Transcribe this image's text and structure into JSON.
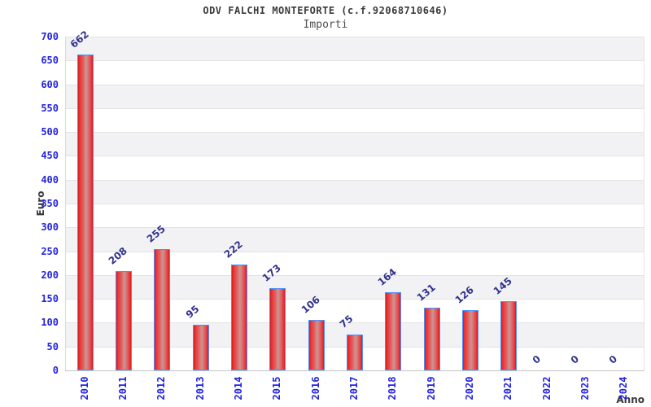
{
  "header": {
    "title": "ODV FALCHI MONTEFORTE (c.f.92068710646)",
    "subtitle": "Importi"
  },
  "chart_data": {
    "type": "bar",
    "title": "ODV FALCHI MONTEFORTE (c.f.92068710646)",
    "subtitle": "Importi",
    "xlabel": "Anno",
    "ylabel": "Euro",
    "categories": [
      "2010",
      "2011",
      "2012",
      "2013",
      "2014",
      "2015",
      "2016",
      "2017",
      "2018",
      "2019",
      "2020",
      "2021",
      "2022",
      "2023",
      "2024"
    ],
    "values": [
      662,
      208,
      255,
      95,
      222,
      173,
      106,
      75,
      164,
      131,
      126,
      145,
      0,
      0,
      0
    ],
    "ylim": [
      0,
      700
    ],
    "ytick_step": 50,
    "grid": true,
    "legend_position": "none",
    "value_labels_shown": true,
    "colors": {
      "bar_red_edge": "#cf1d1d",
      "bar_red_center": "#cd9595",
      "bar_border_blue": "#4d90ff",
      "axis_tick_label_blue": "#2323dd",
      "value_label_navy": "#32328c",
      "band_gray": "#f2f2f4",
      "gridline_gray": "#e3e3e3",
      "title_gray": "#3a3a3a"
    }
  }
}
